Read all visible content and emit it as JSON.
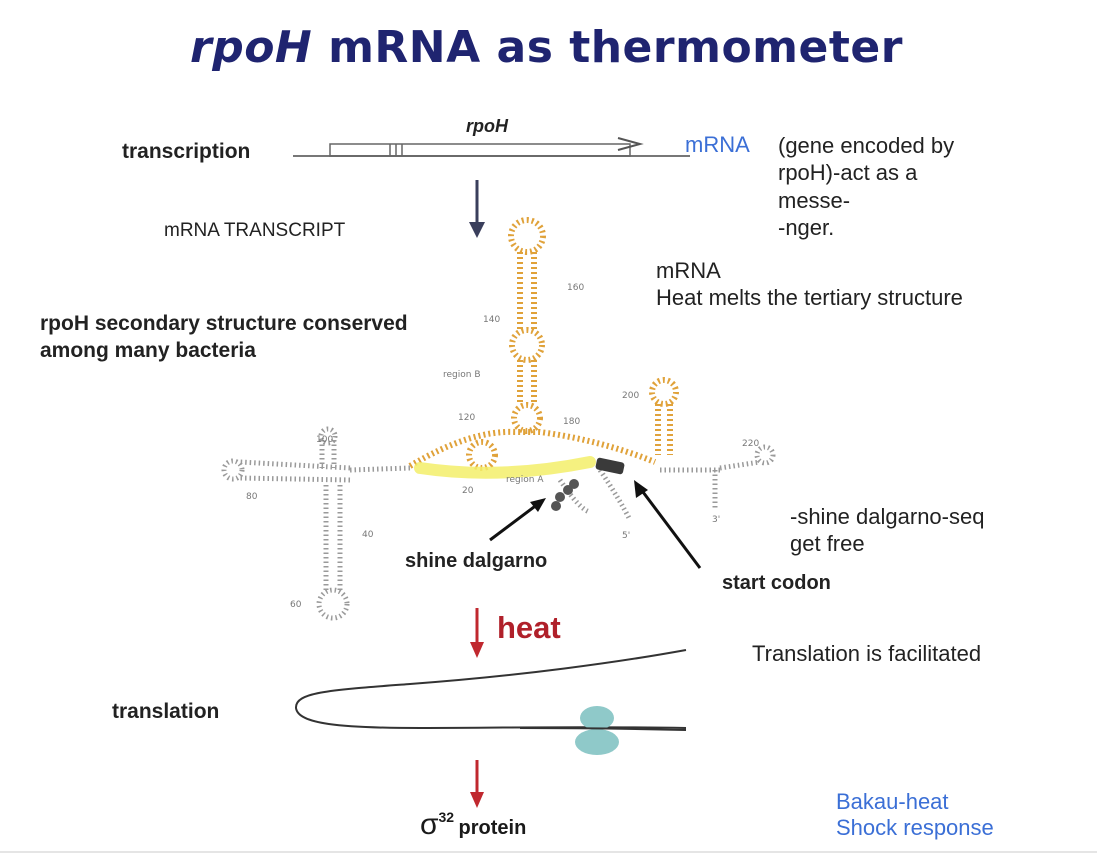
{
  "title": {
    "italic": "rpoH",
    "rest": "mRNA as thermometer"
  },
  "gene_label": "rpoH",
  "transcription_label": "transcription",
  "mrna_word": "mRNA",
  "mrna_note": [
    "(gene encoded by",
    "rpoH)-act as a",
    "messe-",
    "-nger."
  ],
  "mrna_transcript_label": "mRNA TRANSCRIPT",
  "heat_melts": [
    "mRNA",
    "Heat melts the tertiary structure"
  ],
  "secondary_structure": [
    "rpoH secondary structure conserved",
    "among many bacteria"
  ],
  "region_b": "region B",
  "region_a": "region A",
  "numbers": {
    "n140": "140",
    "n160": "160",
    "n120": "120",
    "n180": "180",
    "n200": "200",
    "n100": "100",
    "n220": "220",
    "n20": "20",
    "n40": "40",
    "n60": "60",
    "n80": "80",
    "n3": "3'",
    "n5": "5'"
  },
  "shine_dalgarno_label": "shine dalgarno",
  "start_codon_label": "start codon",
  "shine_free": [
    "-shine dalgarno-seq",
    "get free"
  ],
  "heat_label": "heat",
  "translation_label": "translation",
  "translation_facilitated": "Translation is facilitated",
  "protein": {
    "sigma": "σ",
    "sup": "32",
    "word": "protein"
  },
  "shock_response": [
    "Bakau-heat",
    "Shock response"
  ],
  "colors": {
    "title": "#1f2470",
    "blue_text": "#3b6fd6",
    "heat": "#b0202a",
    "stem_orange": "#e0a23a",
    "region_a_yellow": "#f3ee6a",
    "ribosome": "#8fc9c9"
  }
}
